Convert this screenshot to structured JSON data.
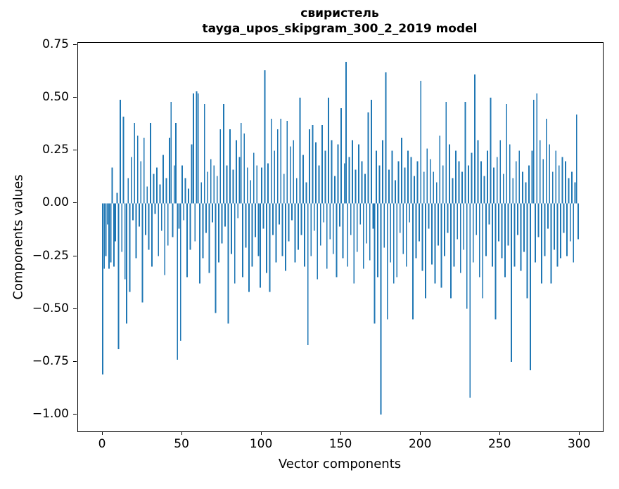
{
  "chart_data": {
    "type": "bar",
    "title": "свиристель",
    "subtitle": "tayga_upos_skipgram_300_2_2019 model",
    "xlabel": "Vector components",
    "ylabel": "Components values",
    "bar_color": "#1f77b4",
    "grid": false,
    "legend": "none",
    "x_start": 0,
    "x_step": 1,
    "n_components": 300,
    "xticks": [
      0,
      50,
      100,
      150,
      200,
      250,
      300
    ],
    "yticks": [
      -1.0,
      -0.75,
      -0.5,
      -0.25,
      0.0,
      0.25,
      0.5,
      0.75
    ],
    "xlim": [
      -15.5,
      314.5
    ],
    "ylim": [
      -1.08,
      0.76
    ],
    "values": [
      -0.81,
      -0.31,
      -0.25,
      -0.1,
      -0.31,
      -0.28,
      0.17,
      -0.3,
      -0.18,
      0.05,
      -0.69,
      0.49,
      -0.23,
      0.41,
      -0.36,
      -0.57,
      0.12,
      -0.42,
      0.22,
      -0.08,
      0.38,
      -0.26,
      0.32,
      -0.11,
      0.2,
      -0.47,
      0.31,
      -0.15,
      0.08,
      -0.22,
      0.38,
      -0.3,
      0.14,
      -0.05,
      0.17,
      -0.25,
      0.09,
      -0.13,
      0.23,
      -0.34,
      0.12,
      -0.2,
      0.31,
      0.48,
      -0.16,
      0.18,
      0.38,
      -0.74,
      -0.12,
      -0.65,
      0.18,
      -0.08,
      0.12,
      -0.35,
      0.07,
      -0.22,
      0.28,
      0.52,
      -0.18,
      0.53,
      0.52,
      -0.38,
      0.1,
      -0.26,
      0.47,
      -0.14,
      0.15,
      -0.33,
      0.21,
      -0.09,
      0.18,
      -0.52,
      0.13,
      -0.28,
      0.35,
      -0.19,
      0.47,
      -0.11,
      0.18,
      -0.57,
      0.35,
      -0.24,
      0.16,
      -0.38,
      0.3,
      -0.07,
      0.22,
      0.38,
      -0.35,
      0.33,
      -0.21,
      0.17,
      -0.42,
      0.11,
      -0.3,
      0.24,
      -0.16,
      0.18,
      -0.25,
      -0.4,
      0.17,
      -0.12,
      0.63,
      -0.33,
      0.19,
      -0.42,
      0.4,
      -0.15,
      0.25,
      -0.28,
      0.35,
      -0.1,
      0.4,
      -0.25,
      0.14,
      -0.32,
      0.39,
      -0.18,
      0.27,
      -0.08,
      0.3,
      -0.28,
      0.12,
      -0.22,
      0.5,
      -0.15,
      0.23,
      -0.3,
      0.1,
      -0.67,
      0.35,
      -0.25,
      0.37,
      -0.13,
      0.29,
      -0.36,
      0.18,
      -0.2,
      0.37,
      -0.09,
      0.25,
      -0.31,
      0.5,
      -0.17,
      0.3,
      -0.24,
      0.13,
      -0.35,
      0.28,
      -0.11,
      0.45,
      -0.26,
      0.19,
      0.67,
      -0.3,
      0.22,
      -0.15,
      0.3,
      -0.38,
      0.16,
      -0.23,
      0.28,
      -0.1,
      0.2,
      -0.31,
      0.14,
      -0.19,
      0.43,
      -0.27,
      0.49,
      -0.12,
      -0.57,
      0.25,
      -0.35,
      0.18,
      -1.0,
      0.3,
      -0.21,
      0.62,
      -0.55,
      0.16,
      -0.28,
      0.25,
      -0.38,
      0.11,
      -0.35,
      0.2,
      -0.14,
      0.31,
      -0.24,
      0.17,
      -0.3,
      0.25,
      -0.09,
      0.22,
      -0.55,
      0.13,
      -0.26,
      0.2,
      -0.18,
      0.58,
      -0.32,
      0.15,
      -0.45,
      0.26,
      -0.12,
      0.21,
      -0.29,
      0.15,
      -0.38,
      0.1,
      -0.2,
      0.32,
      -0.4,
      0.18,
      -0.25,
      0.48,
      -0.14,
      0.28,
      -0.45,
      0.12,
      -0.3,
      0.25,
      -0.17,
      0.2,
      -0.33,
      0.15,
      -0.22,
      0.48,
      -0.5,
      0.18,
      -0.92,
      0.24,
      -0.28,
      0.61,
      -0.15,
      0.3,
      -0.35,
      0.2,
      -0.45,
      0.13,
      -0.25,
      0.25,
      -0.1,
      0.5,
      -0.3,
      0.17,
      -0.55,
      0.22,
      -0.18,
      0.3,
      -0.26,
      0.14,
      -0.35,
      0.47,
      -0.2,
      0.28,
      -0.75,
      0.12,
      -0.3,
      0.2,
      -0.15,
      0.25,
      -0.32,
      0.15,
      -0.23,
      0.1,
      -0.45,
      0.18,
      -0.79,
      0.25,
      0.49,
      -0.28,
      0.52,
      -0.16,
      0.3,
      -0.38,
      0.21,
      -0.25,
      0.4,
      -0.12,
      0.28,
      -0.38,
      0.15,
      -0.22,
      0.25,
      -0.3,
      0.18,
      -0.26,
      0.22,
      -0.14,
      0.2,
      -0.25,
      0.12,
      -0.18,
      0.15,
      -0.28,
      0.1,
      0.42,
      -0.17
    ]
  }
}
